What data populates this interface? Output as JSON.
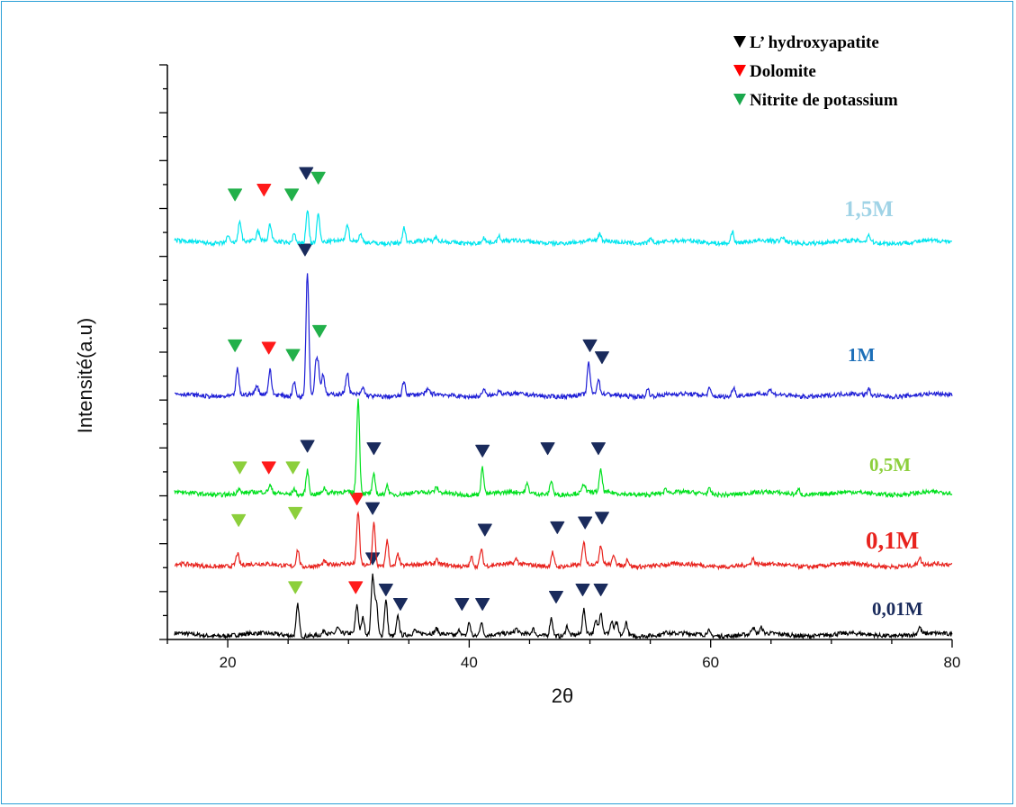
{
  "chart_data": {
    "type": "line",
    "title": "",
    "xlabel": "2θ",
    "ylabel": "Intensité(a.u)",
    "xlim": [
      15,
      80
    ],
    "xticks": [
      20,
      40,
      60,
      80
    ],
    "ylim": [
      0,
      12
    ],
    "y_axis_tick_labels": false,
    "grid": false,
    "legend": {
      "position": "top-right",
      "entries": [
        {
          "name": "L’ hydroxyapatite",
          "color": "#000000",
          "marker": "down-triangle"
        },
        {
          "name": "Dolomite",
          "color": "#ff0000",
          "marker": "down-triangle"
        },
        {
          "name": "Nitrite de potassium",
          "color": "#1aa84c",
          "marker": "down-triangle"
        }
      ]
    },
    "series": [
      {
        "name": "0,01M",
        "color": "#000000",
        "label_color": "#1a2b5c",
        "label_size": 21,
        "baseline": 0.1,
        "peaks": [
          [
            25.8,
            0.65
          ],
          [
            28.0,
            0.1
          ],
          [
            29.1,
            0.12
          ],
          [
            30.7,
            0.6
          ],
          [
            31.2,
            0.35
          ],
          [
            32.0,
            1.25
          ],
          [
            32.3,
            0.7
          ],
          [
            33.1,
            0.75
          ],
          [
            34.1,
            0.4
          ],
          [
            35.5,
            0.08
          ],
          [
            37.3,
            0.1
          ],
          [
            39.2,
            0.12
          ],
          [
            40.0,
            0.28
          ],
          [
            41.0,
            0.28
          ],
          [
            43.9,
            0.1
          ],
          [
            45.3,
            0.12
          ],
          [
            46.8,
            0.38
          ],
          [
            48.1,
            0.2
          ],
          [
            49.5,
            0.5
          ],
          [
            50.5,
            0.25
          ],
          [
            50.9,
            0.45
          ],
          [
            51.8,
            0.25
          ],
          [
            52.2,
            0.25
          ],
          [
            53.0,
            0.28
          ],
          [
            56.3,
            0.08
          ],
          [
            59.8,
            0.1
          ],
          [
            63.5,
            0.15
          ],
          [
            64.2,
            0.12
          ],
          [
            77.3,
            0.15
          ]
        ],
        "markers": [
          {
            "x": 25.6,
            "y": 1.0,
            "type": "n"
          },
          {
            "x": 30.6,
            "y": 1.0,
            "type": "d"
          },
          {
            "x": 32.0,
            "y": 1.6,
            "type": "h"
          },
          {
            "x": 33.1,
            "y": 0.95,
            "type": "h"
          },
          {
            "x": 34.3,
            "y": 0.65,
            "type": "h"
          },
          {
            "x": 39.4,
            "y": 0.65,
            "type": "h"
          },
          {
            "x": 41.1,
            "y": 0.65,
            "type": "h"
          },
          {
            "x": 47.2,
            "y": 0.8,
            "type": "h"
          },
          {
            "x": 49.4,
            "y": 0.95,
            "type": "h"
          },
          {
            "x": 50.9,
            "y": 0.95,
            "type": "h"
          }
        ]
      },
      {
        "name": "0,1M",
        "color": "#e8231e",
        "label_color": "#e8231e",
        "label_size": 27,
        "baseline": 1.55,
        "peaks": [
          [
            20.8,
            0.25
          ],
          [
            25.8,
            0.35
          ],
          [
            28.0,
            0.08
          ],
          [
            30.8,
            1.1
          ],
          [
            32.1,
            0.9
          ],
          [
            33.2,
            0.55
          ],
          [
            34.1,
            0.25
          ],
          [
            37.3,
            0.08
          ],
          [
            40.2,
            0.2
          ],
          [
            41.0,
            0.35
          ],
          [
            43.9,
            0.1
          ],
          [
            46.9,
            0.3
          ],
          [
            49.5,
            0.45
          ],
          [
            50.9,
            0.4
          ],
          [
            52.0,
            0.2
          ],
          [
            53.1,
            0.15
          ],
          [
            63.5,
            0.12
          ],
          [
            77.3,
            0.15
          ]
        ],
        "markers": [
          {
            "x": 20.9,
            "y": 2.4,
            "type": "n"
          },
          {
            "x": 25.6,
            "y": 2.55,
            "type": "n"
          },
          {
            "x": 30.7,
            "y": 2.85,
            "type": "d"
          },
          {
            "x": 32.0,
            "y": 2.65,
            "type": "h"
          },
          {
            "x": 41.3,
            "y": 2.2,
            "type": "h"
          },
          {
            "x": 47.3,
            "y": 2.25,
            "type": "h"
          },
          {
            "x": 49.6,
            "y": 2.35,
            "type": "h"
          },
          {
            "x": 51.0,
            "y": 2.45,
            "type": "h"
          }
        ]
      },
      {
        "name": "0,5M",
        "color": "#00e01e",
        "label_color": "#8ccf3c",
        "label_size": 21,
        "baseline": 3.05,
        "peaks": [
          [
            20.9,
            0.1
          ],
          [
            23.5,
            0.15
          ],
          [
            25.5,
            0.12
          ],
          [
            26.6,
            0.5
          ],
          [
            28.0,
            0.12
          ],
          [
            30.8,
            1.95
          ],
          [
            32.1,
            0.4
          ],
          [
            33.2,
            0.2
          ],
          [
            37.3,
            0.1
          ],
          [
            41.1,
            0.55
          ],
          [
            44.8,
            0.18
          ],
          [
            46.8,
            0.3
          ],
          [
            49.5,
            0.2
          ],
          [
            50.9,
            0.45
          ],
          [
            56.3,
            0.08
          ],
          [
            59.9,
            0.1
          ],
          [
            67.3,
            0.1
          ]
        ],
        "markers": [
          {
            "x": 21.0,
            "y": 3.5,
            "type": "n"
          },
          {
            "x": 23.4,
            "y": 3.5,
            "type": "d"
          },
          {
            "x": 25.4,
            "y": 3.5,
            "type": "n"
          },
          {
            "x": 26.6,
            "y": 3.95,
            "type": "h"
          },
          {
            "x": 32.1,
            "y": 3.9,
            "type": "h"
          },
          {
            "x": 41.1,
            "y": 3.85,
            "type": "h"
          },
          {
            "x": 46.5,
            "y": 3.9,
            "type": "h"
          },
          {
            "x": 50.7,
            "y": 3.9,
            "type": "h"
          }
        ]
      },
      {
        "name": "1M",
        "color": "#1f1fd6",
        "label_color": "#1d6fb8",
        "label_size": 21,
        "baseline": 5.1,
        "peaks": [
          [
            20.8,
            0.55
          ],
          [
            22.4,
            0.18
          ],
          [
            23.5,
            0.5
          ],
          [
            25.5,
            0.3
          ],
          [
            26.6,
            2.6
          ],
          [
            27.3,
            0.6
          ],
          [
            27.5,
            0.55
          ],
          [
            27.9,
            0.45
          ],
          [
            29.9,
            0.45
          ],
          [
            31.2,
            0.15
          ],
          [
            34.6,
            0.3
          ],
          [
            36.6,
            0.1
          ],
          [
            41.2,
            0.15
          ],
          [
            42.5,
            0.1
          ],
          [
            49.9,
            0.65
          ],
          [
            50.7,
            0.3
          ],
          [
            54.8,
            0.15
          ],
          [
            59.9,
            0.15
          ],
          [
            61.9,
            0.2
          ],
          [
            64.9,
            0.1
          ],
          [
            73.1,
            0.12
          ]
        ],
        "markers": [
          {
            "x": 20.6,
            "y": 6.05,
            "type": "n"
          },
          {
            "x": 23.4,
            "y": 6.0,
            "type": "d"
          },
          {
            "x": 25.4,
            "y": 5.85,
            "type": "n"
          },
          {
            "x": 26.4,
            "y": 8.05,
            "type": "h"
          },
          {
            "x": 27.6,
            "y": 6.35,
            "type": "n"
          },
          {
            "x": 50.0,
            "y": 6.05,
            "type": "h"
          },
          {
            "x": 51.0,
            "y": 5.8,
            "type": "h"
          }
        ]
      },
      {
        "name": "1,5M",
        "color": "#00e5ee",
        "label_color": "#a0d3e6",
        "label_size": 25,
        "baseline": 8.3,
        "peaks": [
          [
            20.0,
            0.15
          ],
          [
            21.0,
            0.45
          ],
          [
            22.5,
            0.2
          ],
          [
            23.5,
            0.35
          ],
          [
            25.5,
            0.2
          ],
          [
            26.6,
            0.7
          ],
          [
            27.5,
            0.6
          ],
          [
            29.9,
            0.35
          ],
          [
            31.0,
            0.15
          ],
          [
            34.6,
            0.3
          ],
          [
            37.3,
            0.08
          ],
          [
            41.2,
            0.12
          ],
          [
            42.5,
            0.1
          ],
          [
            50.8,
            0.15
          ],
          [
            55.0,
            0.08
          ],
          [
            61.8,
            0.25
          ],
          [
            66.0,
            0.1
          ],
          [
            73.1,
            0.15
          ]
        ],
        "markers": [
          {
            "x": 20.6,
            "y": 9.2,
            "type": "n"
          },
          {
            "x": 23.0,
            "y": 9.3,
            "type": "d"
          },
          {
            "x": 25.3,
            "y": 9.2,
            "type": "n"
          },
          {
            "x": 26.5,
            "y": 9.65,
            "type": "h"
          },
          {
            "x": 27.5,
            "y": 9.55,
            "type": "n"
          }
        ]
      }
    ],
    "marker_colors": {
      "h": "#1a2b5c",
      "d": "#ff1a1a",
      "n": "#22b04a",
      "n_light": "#8ccf3c"
    }
  }
}
